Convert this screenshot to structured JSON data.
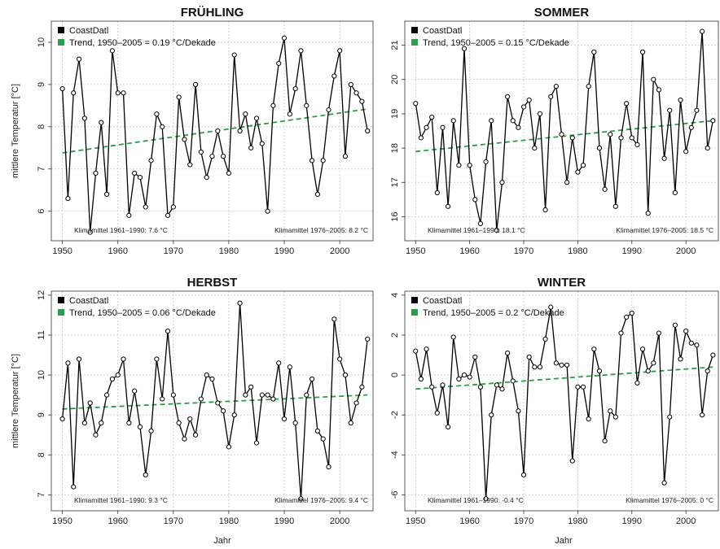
{
  "figure": {
    "xlabel": "Jahr"
  },
  "chart_data": [
    {
      "type": "line",
      "title": "FRÜHLING",
      "ylabel": "mittlere Temperatur [°C]",
      "xlim": [
        1948,
        2006
      ],
      "ylim": [
        5.3,
        10.5
      ],
      "xticks": [
        1950,
        1960,
        1970,
        1980,
        1990,
        2000
      ],
      "yticks": [
        6,
        7,
        8,
        9,
        10
      ],
      "grid": true,
      "legend_position": "top-left",
      "legend": [
        "CoastDatl",
        "Trend, 1950–2005 = 0.19 °C/Dekade"
      ],
      "series": [
        {
          "name": "CoastDatl",
          "color": "#000000",
          "x": [
            1950,
            1951,
            1952,
            1953,
            1954,
            1955,
            1956,
            1957,
            1958,
            1959,
            1960,
            1961,
            1962,
            1963,
            1964,
            1965,
            1966,
            1967,
            1968,
            1969,
            1970,
            1971,
            1972,
            1973,
            1974,
            1975,
            1976,
            1977,
            1978,
            1979,
            1980,
            1981,
            1982,
            1983,
            1984,
            1985,
            1986,
            1987,
            1988,
            1989,
            1990,
            1991,
            1992,
            1993,
            1994,
            1995,
            1996,
            1997,
            1998,
            1999,
            2000,
            2001,
            2002,
            2003,
            2004,
            2005
          ],
          "y": [
            8.9,
            6.3,
            8.8,
            9.6,
            8.2,
            5.5,
            6.9,
            8.1,
            6.4,
            9.8,
            8.8,
            8.8,
            5.9,
            6.9,
            6.8,
            6.1,
            7.2,
            8.3,
            8.0,
            5.9,
            6.1,
            8.7,
            7.7,
            7.1,
            9.0,
            7.4,
            6.8,
            7.3,
            7.9,
            7.3,
            6.9,
            9.7,
            7.9,
            8.3,
            7.5,
            8.2,
            7.6,
            6.0,
            8.5,
            9.5,
            10.1,
            8.3,
            8.9,
            9.8,
            8.5,
            7.2,
            6.4,
            7.2,
            8.4,
            9.2,
            9.8,
            7.3,
            9.0,
            8.8,
            8.6,
            7.9
          ]
        },
        {
          "name": "Trend, 1950–2005 = 0.19 °C/Dekade",
          "color": "#2e9b4e",
          "x": [
            1950,
            2005
          ],
          "y": [
            7.38,
            8.42
          ]
        }
      ],
      "annotations": [
        "Klimamittel 1961–1990: 7.6 °C",
        "Klimamittel 1976–2005: 8.2 °C"
      ]
    },
    {
      "type": "line",
      "title": "SOMMER",
      "ylabel": "",
      "xlim": [
        1948,
        2006
      ],
      "ylim": [
        15.3,
        21.7
      ],
      "xticks": [
        1950,
        1960,
        1970,
        1980,
        1990,
        2000
      ],
      "yticks": [
        16,
        17,
        18,
        19,
        20,
        21
      ],
      "grid": true,
      "legend_position": "top-left",
      "legend": [
        "CoastDatl",
        "Trend, 1950–2005 = 0.15 °C/Dekade"
      ],
      "series": [
        {
          "name": "CoastDatl",
          "color": "#000000",
          "x": [
            1950,
            1951,
            1952,
            1953,
            1954,
            1955,
            1956,
            1957,
            1958,
            1959,
            1960,
            1961,
            1962,
            1963,
            1964,
            1965,
            1966,
            1967,
            1968,
            1969,
            1970,
            1971,
            1972,
            1973,
            1974,
            1975,
            1976,
            1977,
            1978,
            1979,
            1980,
            1981,
            1982,
            1983,
            1984,
            1985,
            1986,
            1987,
            1988,
            1989,
            1990,
            1991,
            1992,
            1993,
            1994,
            1995,
            1996,
            1997,
            1998,
            1999,
            2000,
            2001,
            2002,
            2003,
            2004,
            2005
          ],
          "y": [
            19.3,
            18.3,
            18.6,
            18.9,
            16.7,
            18.6,
            16.3,
            18.8,
            17.5,
            20.9,
            17.5,
            16.5,
            15.8,
            17.6,
            18.8,
            15.6,
            17.0,
            19.5,
            18.8,
            18.6,
            19.2,
            19.4,
            18.0,
            19.0,
            16.2,
            19.5,
            19.8,
            18.4,
            17.0,
            18.3,
            17.3,
            17.5,
            19.8,
            20.8,
            18.0,
            16.8,
            18.4,
            16.3,
            18.3,
            19.3,
            18.3,
            18.1,
            20.8,
            16.1,
            20.0,
            19.7,
            17.7,
            19.1,
            16.7,
            19.4,
            17.9,
            18.6,
            19.1,
            21.4,
            18.0,
            18.8
          ]
        },
        {
          "name": "Trend, 1950–2005 = 0.15 °C/Dekade",
          "color": "#2e9b4e",
          "x": [
            1950,
            2005
          ],
          "y": [
            17.9,
            18.8
          ]
        }
      ],
      "annotations": [
        "Klimamittel 1961–1990: 18.1 °C",
        "Klimamittel 1976–2005: 18.5 °C"
      ]
    },
    {
      "type": "line",
      "title": "HERBST",
      "ylabel": "mittlere Temperatur [°C]",
      "xlim": [
        1948,
        2006
      ],
      "ylim": [
        6.6,
        12.1
      ],
      "xticks": [
        1950,
        1960,
        1970,
        1980,
        1990,
        2000
      ],
      "yticks": [
        7,
        8,
        9,
        10,
        11,
        12
      ],
      "grid": true,
      "legend_position": "top-left",
      "legend": [
        "CoastDatl",
        "Trend, 1950–2005 = 0.06 °C/Dekade"
      ],
      "series": [
        {
          "name": "CoastDatl",
          "color": "#000000",
          "x": [
            1950,
            1951,
            1952,
            1953,
            1954,
            1955,
            1956,
            1957,
            1958,
            1959,
            1960,
            1961,
            1962,
            1963,
            1964,
            1965,
            1966,
            1967,
            1968,
            1969,
            1970,
            1971,
            1972,
            1973,
            1974,
            1975,
            1976,
            1977,
            1978,
            1979,
            1980,
            1981,
            1982,
            1983,
            1984,
            1985,
            1986,
            1987,
            1988,
            1989,
            1990,
            1991,
            1992,
            1993,
            1994,
            1995,
            1996,
            1997,
            1998,
            1999,
            2000,
            2001,
            2002,
            2003,
            2004,
            2005
          ],
          "y": [
            8.9,
            10.3,
            7.2,
            10.4,
            8.8,
            9.3,
            8.5,
            8.8,
            9.5,
            9.9,
            10.0,
            10.4,
            8.8,
            9.6,
            8.7,
            7.5,
            8.6,
            10.4,
            9.4,
            11.1,
            9.5,
            8.8,
            8.4,
            8.9,
            8.5,
            9.4,
            10.0,
            9.9,
            9.3,
            9.1,
            8.2,
            9.0,
            11.8,
            9.5,
            9.7,
            8.3,
            9.5,
            9.5,
            9.4,
            10.3,
            8.9,
            10.2,
            8.8,
            6.9,
            9.5,
            9.9,
            8.6,
            8.4,
            7.7,
            11.4,
            10.4,
            10.0,
            8.8,
            9.3,
            9.7,
            10.9
          ]
        },
        {
          "name": "Trend, 1950–2005 = 0.06 °C/Dekade",
          "color": "#2e9b4e",
          "x": [
            1950,
            2005
          ],
          "y": [
            9.15,
            9.5
          ]
        }
      ],
      "annotations": [
        "Klimamittel 1961–1990: 9.3 °C",
        "Klimamittel 1976–2005: 9.4 °C"
      ]
    },
    {
      "type": "line",
      "title": "WINTER",
      "ylabel": "",
      "xlim": [
        1948,
        2006
      ],
      "ylim": [
        -6.8,
        4.2
      ],
      "xticks": [
        1950,
        1960,
        1970,
        1980,
        1990,
        2000
      ],
      "yticks": [
        -6,
        -4,
        -2,
        0,
        2,
        4
      ],
      "grid": true,
      "legend_position": "top-left",
      "legend": [
        "CoastDatl",
        "Trend, 1950–2005 = 0.2 °C/Dekade"
      ],
      "series": [
        {
          "name": "CoastDatl",
          "color": "#000000",
          "x": [
            1950,
            1951,
            1952,
            1953,
            1954,
            1955,
            1956,
            1957,
            1958,
            1959,
            1960,
            1961,
            1962,
            1963,
            1964,
            1965,
            1966,
            1967,
            1968,
            1969,
            1970,
            1971,
            1972,
            1973,
            1974,
            1975,
            1976,
            1977,
            1978,
            1979,
            1980,
            1981,
            1982,
            1983,
            1984,
            1985,
            1986,
            1987,
            1988,
            1989,
            1990,
            1991,
            1992,
            1993,
            1994,
            1995,
            1996,
            1997,
            1998,
            1999,
            2000,
            2001,
            2002,
            2003,
            2004,
            2005
          ],
          "y": [
            1.2,
            -0.2,
            1.3,
            -0.6,
            -1.9,
            -0.5,
            -2.6,
            1.9,
            -0.2,
            0.0,
            -0.1,
            0.9,
            -0.6,
            -6.2,
            -2.0,
            -0.5,
            -0.7,
            1.1,
            -0.3,
            -1.8,
            -5.0,
            0.9,
            0.4,
            0.4,
            1.8,
            3.4,
            0.6,
            0.5,
            0.5,
            -4.3,
            -0.6,
            -0.6,
            -2.2,
            1.3,
            0.2,
            -3.3,
            -1.8,
            -2.1,
            2.1,
            2.9,
            3.1,
            -0.4,
            1.3,
            0.2,
            0.6,
            2.1,
            -5.4,
            -2.1,
            2.5,
            0.8,
            2.2,
            1.6,
            1.5,
            -2.0,
            0.2,
            1.0
          ]
        },
        {
          "name": "Trend, 1950–2005 = 0.2 °C/Dekade",
          "color": "#2e9b4e",
          "x": [
            1950,
            2005
          ],
          "y": [
            -0.7,
            0.4
          ]
        }
      ],
      "annotations": [
        "Klimamittel 1961–1990: -0.4 °C",
        "Klimamittel 1976–2005: 0 °C"
      ]
    }
  ]
}
